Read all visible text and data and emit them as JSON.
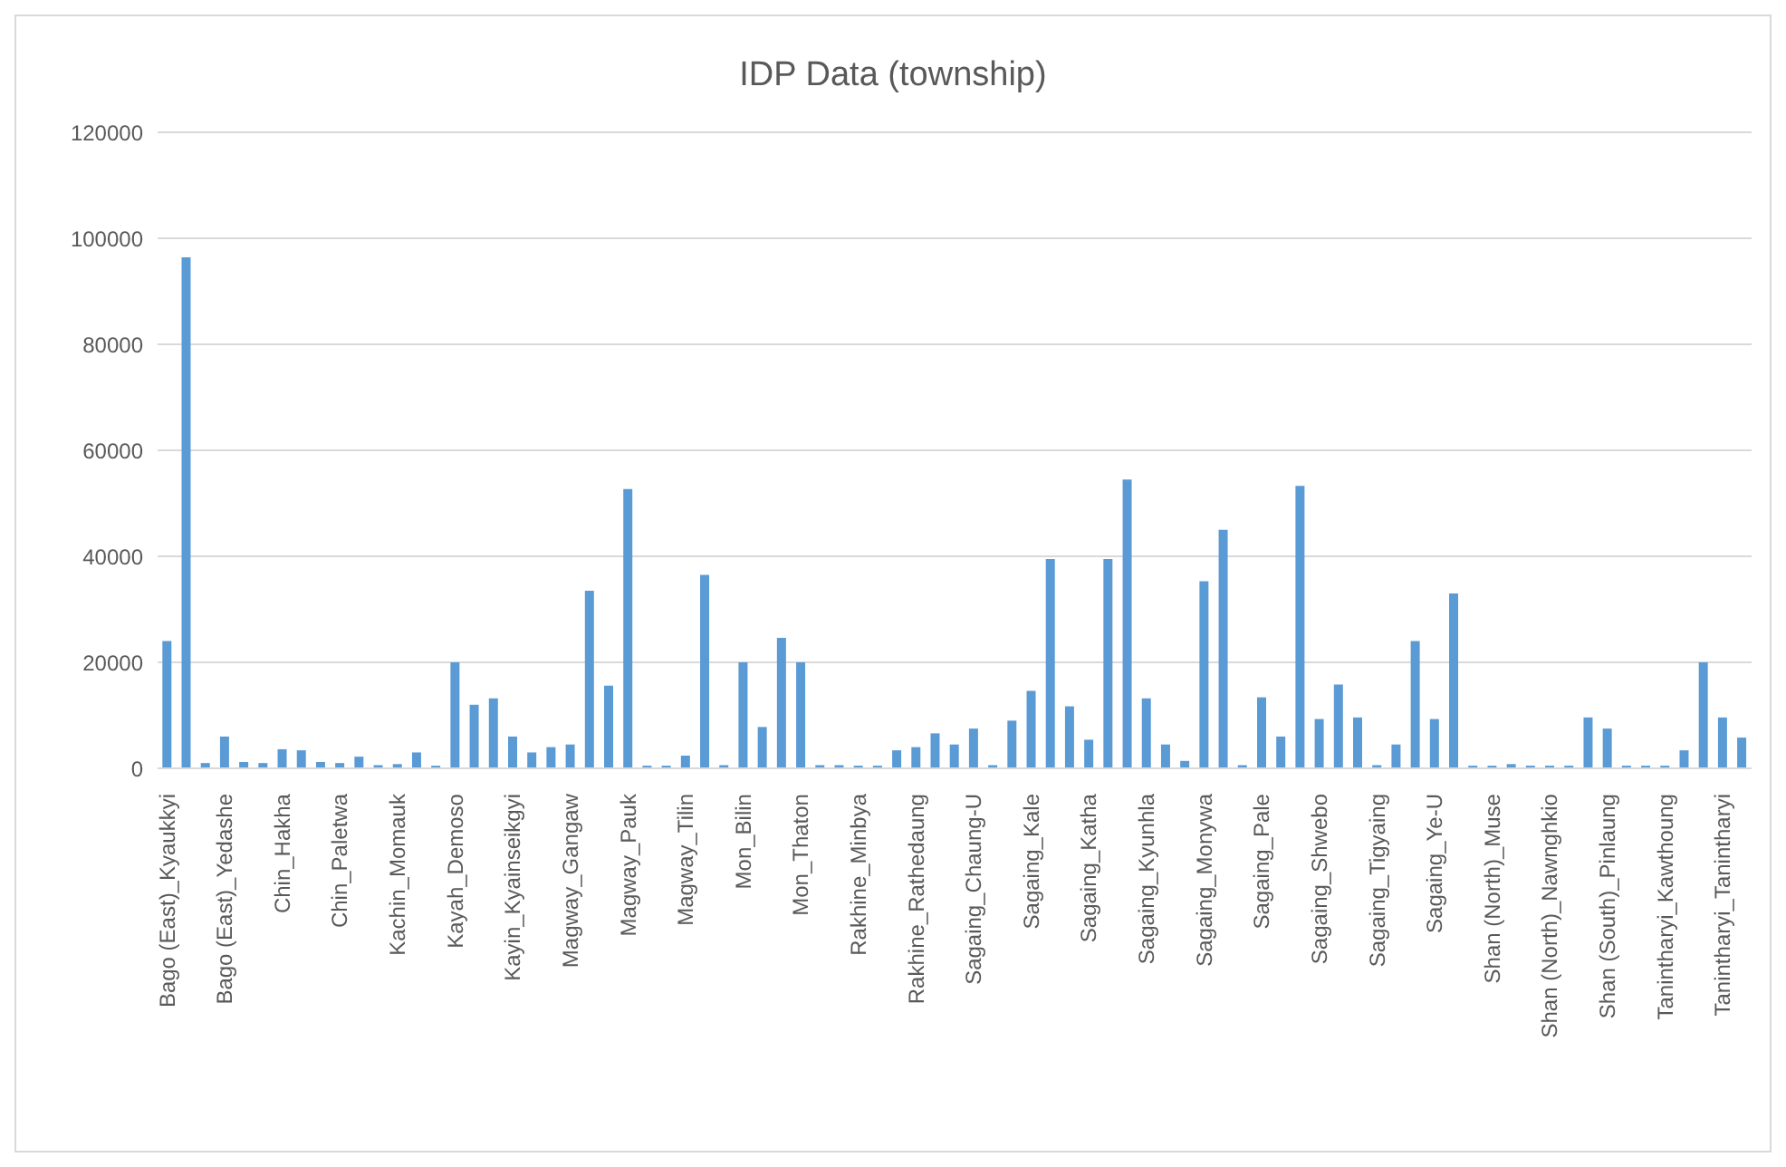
{
  "chart_data": {
    "type": "bar",
    "title": "IDP Data (township)",
    "categories": [
      "Bago (East)_Kyaukkyi",
      null,
      null,
      "Bago (East)_Yedashe",
      null,
      null,
      "Chin_Hakha",
      null,
      null,
      "Chin_Paletwa",
      null,
      null,
      "Kachin_Momauk",
      null,
      null,
      "Kayah_Demoso",
      null,
      null,
      "Kayin_Kyainseikgyi",
      null,
      null,
      "Magway_Gangaw",
      null,
      null,
      "Magway_Pauk",
      null,
      null,
      "Magway_Tilin",
      null,
      null,
      "Mon_Bilin",
      null,
      null,
      "Mon_Thaton",
      null,
      null,
      "Rakhine_Minbya",
      null,
      null,
      "Rakhine_Rathedaung",
      null,
      null,
      "Sagaing_Chaung-U",
      null,
      null,
      "Sagaing_Kale",
      null,
      null,
      "Sagaing_Katha",
      null,
      null,
      "Sagaing_Kyunhla",
      null,
      null,
      "Sagaing_Monywa",
      null,
      null,
      "Sagaing_Pale",
      null,
      null,
      "Sagaing_Shwebo",
      null,
      null,
      "Sagaing_Tigyaing",
      null,
      null,
      "Sagaing_Ye-U",
      null,
      null,
      "Shan (North)_Muse",
      null,
      null,
      "Shan (North)_Nawnghkio",
      null,
      null,
      "Shan (South)_Pinlaung",
      null,
      null,
      "Tanintharyi_Kawthoung",
      null,
      null,
      "Tanintharyi_Tanintharyi",
      null
    ],
    "values": [
      24000,
      96400,
      1000,
      6000,
      1200,
      1000,
      3600,
      3400,
      1200,
      1000,
      2200,
      600,
      800,
      3000,
      500,
      20000,
      12000,
      13200,
      6000,
      3000,
      4000,
      4500,
      33500,
      15600,
      52700,
      500,
      500,
      2400,
      36500,
      600,
      20000,
      7800,
      24600,
      20000,
      600,
      600,
      500,
      500,
      3400,
      4000,
      6600,
      4500,
      7500,
      600,
      9000,
      14600,
      39500,
      11700,
      5400,
      39500,
      54500,
      13200,
      4500,
      1400,
      35300,
      45000,
      600,
      13400,
      6000,
      53300,
      9300,
      15800,
      9600,
      600,
      4500,
      24000,
      9300,
      33000,
      500,
      500,
      800,
      500,
      500,
      500,
      9600,
      7500,
      500,
      500,
      500,
      3400,
      20000,
      9600,
      5800
    ],
    "color": "#5b9bd5",
    "ylim": [
      0,
      120000
    ],
    "yticks": [
      0,
      20000,
      40000,
      60000,
      80000,
      100000,
      120000
    ],
    "grid": "y"
  }
}
